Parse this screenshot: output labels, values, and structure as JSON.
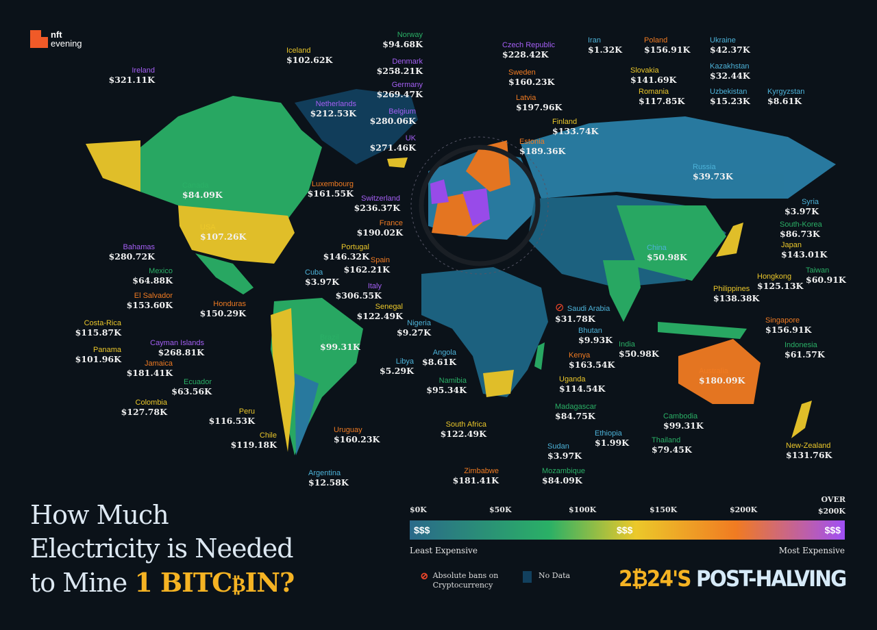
{
  "brand": {
    "logo_line1": "nft",
    "logo_line2": "evening"
  },
  "title": {
    "line1": "How Much",
    "line2": "Electricity is Needed",
    "line3_prefix": "to Mine ",
    "line3_btc": "1 BITC",
    "coin": "₿",
    "line3_suffix": "IN?"
  },
  "scale": {
    "ticks": [
      "$0K",
      "$50K",
      "$100K",
      "$150K",
      "$200K",
      "OVER $200K"
    ],
    "low_label": "Least Expensive",
    "high_label": "Most Expensive",
    "icons": [
      "$$$",
      "$$$",
      "$$$"
    ],
    "colors": [
      "#2a6a8a",
      "#2ab066",
      "#ecc82a",
      "#f07b22",
      "#a04ff5"
    ]
  },
  "legend": {
    "ban_label": "Absolute bans on Cryptocurrency",
    "no_data_label": "No Data",
    "no_data_color": "#12405e",
    "ban_color": "#f0462a"
  },
  "badge": {
    "year_a": "2",
    "coin": "₿",
    "year_b": "24'S",
    "text": "POST-HALVING"
  },
  "countries": [
    {
      "name": "Norway",
      "value": "$94.68K",
      "color": "#2ab066"
    },
    {
      "name": "Czech Republic",
      "value": "$228.42K",
      "color": "#a55ff5"
    },
    {
      "name": "Iran",
      "value": "$1.32K",
      "color": "#4db3d9"
    },
    {
      "name": "Poland",
      "value": "$156.91K",
      "color": "#f07b22"
    },
    {
      "name": "Ukraine",
      "value": "$42.37K",
      "color": "#4db3d9"
    },
    {
      "name": "Iceland",
      "value": "$102.62K",
      "color": "#ecc82a"
    },
    {
      "name": "Denmark",
      "value": "$258.21K",
      "color": "#a55ff5"
    },
    {
      "name": "Sweden",
      "value": "$160.23K",
      "color": "#f07b22"
    },
    {
      "name": "Slovakia",
      "value": "$141.69K",
      "color": "#ecc82a"
    },
    {
      "name": "Kazakhstan",
      "value": "$32.44K",
      "color": "#4db3d9"
    },
    {
      "name": "Ireland",
      "value": "$321.11K",
      "color": "#a55ff5"
    },
    {
      "name": "Germany",
      "value": "$269.47K",
      "color": "#a55ff5"
    },
    {
      "name": "Romania",
      "value": "$117.85K",
      "color": "#ecc82a"
    },
    {
      "name": "Uzbekistan",
      "value": "$15.23K",
      "color": "#4db3d9"
    },
    {
      "name": "Kyrgyzstan",
      "value": "$8.61K",
      "color": "#4db3d9"
    },
    {
      "name": "Netherlands",
      "value": "$212.53K",
      "color": "#a55ff5"
    },
    {
      "name": "Latvia",
      "value": "$197.96K",
      "color": "#f07b22"
    },
    {
      "name": "Belgium",
      "value": "$280.06K",
      "color": "#a55ff5"
    },
    {
      "name": "Finland",
      "value": "$133.74K",
      "color": "#ecc82a"
    },
    {
      "name": "Estonia",
      "value": "$189.36K",
      "color": "#f07b22"
    },
    {
      "name": "UK",
      "value": "$271.46K",
      "color": "#a55ff5"
    },
    {
      "name": "Russia",
      "value": "$39.73K",
      "color": "#4db3d9"
    },
    {
      "name": "Luxembourg",
      "value": "$161.55K",
      "color": "#f07b22"
    },
    {
      "name": "Canada",
      "value": "$84.09K",
      "color": "#2ab066"
    },
    {
      "name": "Switzerland",
      "value": "$236.37K",
      "color": "#a55ff5"
    },
    {
      "name": "Syria",
      "value": "$3.97K",
      "color": "#4db3d9"
    },
    {
      "name": "France",
      "value": "$190.02K",
      "color": "#f07b22"
    },
    {
      "name": "South-Korea",
      "value": "$86.73K",
      "color": "#2ab066"
    },
    {
      "name": "USA",
      "value": "$107.26K",
      "color": "#ecc82a"
    },
    {
      "name": "Japan",
      "value": "$143.01K",
      "color": "#ecc82a"
    },
    {
      "name": "Portugal",
      "value": "$146.32K",
      "color": "#ecc82a"
    },
    {
      "name": "China",
      "value": "$50.98K",
      "color": "#4db3d9"
    },
    {
      "name": "Bahamas",
      "value": "$280.72K",
      "color": "#a55ff5"
    },
    {
      "name": "Spain",
      "value": "$162.21K",
      "color": "#f07b22"
    },
    {
      "name": "Hongkong",
      "value": "$125.13K",
      "color": "#ecc82a"
    },
    {
      "name": "Mexico",
      "value": "$64.88K",
      "color": "#2ab066"
    },
    {
      "name": "Cuba",
      "value": "$3.97K",
      "color": "#4db3d9"
    },
    {
      "name": "Taiwan",
      "value": "$60.91K",
      "color": "#2ab066"
    },
    {
      "name": "Italy",
      "value": "$306.55K",
      "color": "#a55ff5"
    },
    {
      "name": "Philippines",
      "value": "$138.38K",
      "color": "#ecc82a"
    },
    {
      "name": "El Salvador",
      "value": "$153.60K",
      "color": "#f07b22"
    },
    {
      "name": "Honduras",
      "value": "$150.29K",
      "color": "#f07b22"
    },
    {
      "name": "Senegal",
      "value": "$122.49K",
      "color": "#ecc82a"
    },
    {
      "name": "Saudi Arabia",
      "value": "$31.78K",
      "color": "#4db3d9",
      "banned": true
    },
    {
      "name": "Nigeria",
      "value": "$9.27K",
      "color": "#4db3d9"
    },
    {
      "name": "Singapore",
      "value": "$156.91K",
      "color": "#f07b22"
    },
    {
      "name": "Costa-Rica",
      "value": "$115.87K",
      "color": "#ecc82a"
    },
    {
      "name": "Bhutan",
      "value": "$9.93K",
      "color": "#4db3d9"
    },
    {
      "name": "Cayman Islands",
      "value": "$268.81K",
      "color": "#a55ff5"
    },
    {
      "name": "Brazil",
      "value": "$99.31K",
      "color": "#2ab066"
    },
    {
      "name": "Indonesia",
      "value": "$61.57K",
      "color": "#2ab066"
    },
    {
      "name": "Angola",
      "value": "$8.61K",
      "color": "#4db3d9"
    },
    {
      "name": "India",
      "value": "$50.98K",
      "color": "#2ab066"
    },
    {
      "name": "Libya",
      "value": "$5.29K",
      "color": "#4db3d9"
    },
    {
      "name": "Panama",
      "value": "$101.96K",
      "color": "#ecc82a"
    },
    {
      "name": "Kenya",
      "value": "$163.54K",
      "color": "#f07b22"
    },
    {
      "name": "Jamaica",
      "value": "$181.41K",
      "color": "#f07b22"
    },
    {
      "name": "Uganda",
      "value": "$114.54K",
      "color": "#ecc82a"
    },
    {
      "name": "Ecuador",
      "value": "$63.56K",
      "color": "#2ab066"
    },
    {
      "name": "Namibia",
      "value": "$95.34K",
      "color": "#2ab066"
    },
    {
      "name": "Australia",
      "value": "$180.09K",
      "color": "#f07b22"
    },
    {
      "name": "Madagascar",
      "value": "$84.75K",
      "color": "#2ab066"
    },
    {
      "name": "Colombia",
      "value": "$127.78K",
      "color": "#ecc82a"
    },
    {
      "name": "Peru",
      "value": "$116.53K",
      "color": "#ecc82a"
    },
    {
      "name": "Cambodia",
      "value": "$99.31K",
      "color": "#2ab066"
    },
    {
      "name": "Ethiopia",
      "value": "$1.99K",
      "color": "#4db3d9"
    },
    {
      "name": "Uruguay",
      "value": "$160.23K",
      "color": "#f07b22"
    },
    {
      "name": "Chile",
      "value": "$119.18K",
      "color": "#ecc82a"
    },
    {
      "name": "South Africa",
      "value": "$122.49K",
      "color": "#ecc82a"
    },
    {
      "name": "Thailand",
      "value": "$79.45K",
      "color": "#2ab066"
    },
    {
      "name": "New-Zealand",
      "value": "$131.76K",
      "color": "#ecc82a"
    },
    {
      "name": "Sudan",
      "value": "$3.97K",
      "color": "#4db3d9"
    },
    {
      "name": "Argentina",
      "value": "$12.58K",
      "color": "#4db3d9"
    },
    {
      "name": "Zimbabwe",
      "value": "$181.41K",
      "color": "#f07b22"
    },
    {
      "name": "Mozambique",
      "value": "$84.09K",
      "color": "#2ab066"
    }
  ]
}
